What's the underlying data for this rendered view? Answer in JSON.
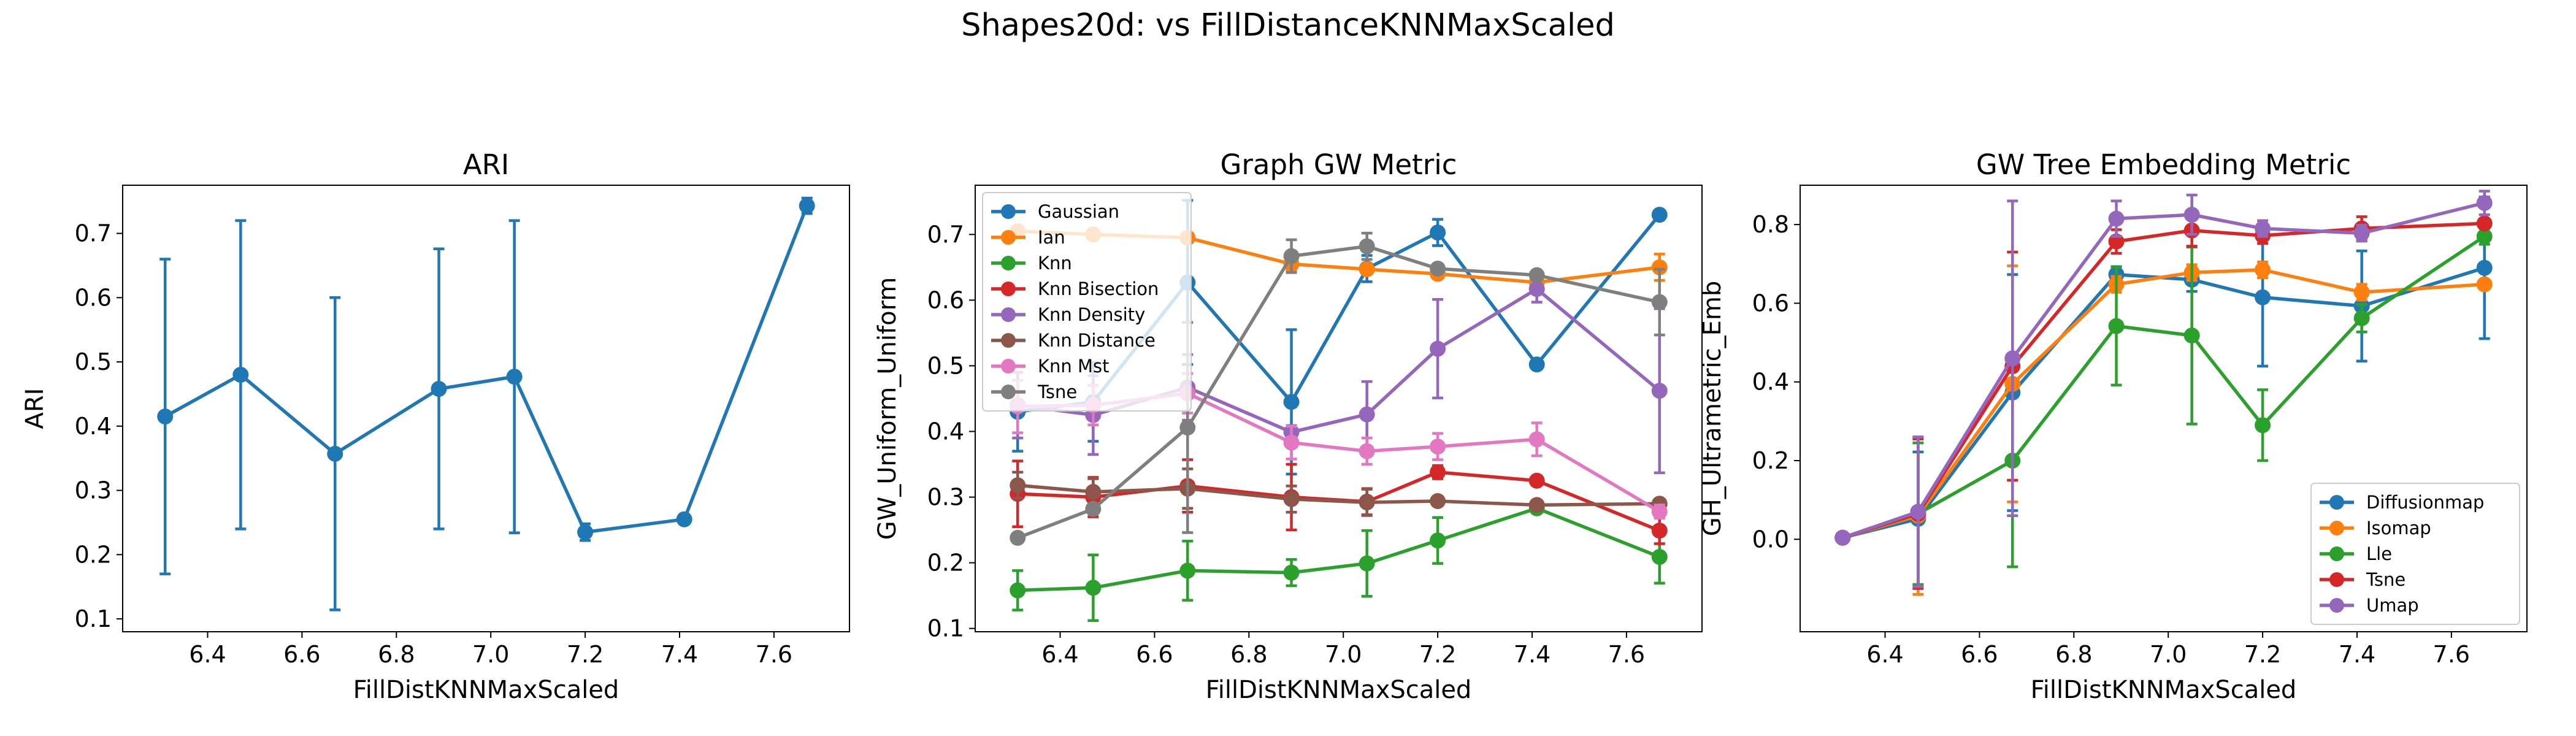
{
  "figure": {
    "title": "Shapes20d: vs FillDistanceKNNMaxScaled"
  },
  "chart_data": [
    {
      "type": "line",
      "title": "ARI",
      "xlabel": "FillDistKNNMaxScaled",
      "ylabel": "ARI",
      "xlim": [
        6.22,
        7.76
      ],
      "ylim": [
        0.08,
        0.775
      ],
      "xticks": [
        6.4,
        6.6,
        6.8,
        7.0,
        7.2,
        7.4,
        7.6
      ],
      "yticks": [
        0.1,
        0.2,
        0.3,
        0.4,
        0.5,
        0.6,
        0.7
      ],
      "x": [
        6.31,
        6.47,
        6.67,
        6.89,
        7.05,
        7.2,
        7.41,
        7.67
      ],
      "legend": null,
      "series": [
        {
          "color": "#1f77b4",
          "values": [
            0.415,
            0.48,
            0.357,
            0.458,
            0.477,
            0.235,
            0.255,
            0.743
          ],
          "err": [
            0.245,
            0.24,
            0.243,
            0.218,
            0.243,
            0.013,
            0,
            0.012
          ]
        }
      ]
    },
    {
      "type": "line",
      "title": "Graph GW Metric",
      "xlabel": "FillDistKNNMaxScaled",
      "ylabel": "GW_Uniform_Uniform",
      "xlim": [
        6.22,
        7.76
      ],
      "ylim": [
        0.095,
        0.775
      ],
      "xticks": [
        6.4,
        6.6,
        6.8,
        7.0,
        7.2,
        7.4,
        7.6
      ],
      "yticks": [
        0.1,
        0.2,
        0.3,
        0.4,
        0.5,
        0.6,
        0.7
      ],
      "x": [
        6.31,
        6.47,
        6.67,
        6.89,
        7.05,
        7.2,
        7.41,
        7.67
      ],
      "legend": "top-left",
      "series": [
        {
          "name": "Gaussian",
          "color": "#1f77b4",
          "values": [
            0.43,
            0.445,
            0.627,
            0.445,
            0.648,
            0.703,
            0.502,
            0.73
          ],
          "err": [
            0.06,
            0.06,
            0.125,
            0.11,
            0.02,
            0.02,
            0,
            0
          ]
        },
        {
          "name": "Ian",
          "color": "#ff7f0e",
          "values": [
            0.705,
            0.7,
            0.695,
            0.655,
            0.647,
            0.64,
            0.627,
            0.65
          ],
          "err": [
            0,
            0,
            0,
            0.01,
            0,
            0,
            0,
            0.02
          ]
        },
        {
          "name": "Knn",
          "color": "#2ca02c",
          "values": [
            0.158,
            0.162,
            0.188,
            0.185,
            0.199,
            0.234,
            0.283,
            0.209
          ],
          "err": [
            0.03,
            0.05,
            0.045,
            0.02,
            0.05,
            0.035,
            0,
            0.04
          ]
        },
        {
          "name": "Knn Bisection",
          "color": "#d62728",
          "values": [
            0.305,
            0.3,
            0.317,
            0.3,
            0.293,
            0.338,
            0.325,
            0.249
          ],
          "err": [
            0.05,
            0.03,
            0.04,
            0.05,
            0.02,
            0.01,
            0,
            0.02
          ]
        },
        {
          "name": "Knn Density",
          "color": "#9467bd",
          "values": [
            0.44,
            0.425,
            0.467,
            0.399,
            0.426,
            0.526,
            0.617,
            0.462
          ],
          "err": [
            0.05,
            0.06,
            0.05,
            0.01,
            0.05,
            0.075,
            0.02,
            0.125
          ]
        },
        {
          "name": "Knn Distance",
          "color": "#8c564b",
          "values": [
            0.318,
            0.308,
            0.313,
            0.297,
            0.292,
            0.294,
            0.288,
            0.29
          ],
          "err": [
            0.02,
            0.02,
            0.03,
            0.02,
            0.02,
            0,
            0,
            0
          ]
        },
        {
          "name": "Knn Mst",
          "color": "#e377c2",
          "values": [
            0.438,
            0.44,
            0.458,
            0.383,
            0.37,
            0.377,
            0.388,
            0.278
          ],
          "err": [
            0.04,
            0.03,
            0.03,
            0.025,
            0.02,
            0.02,
            0.025,
            0.01
          ]
        },
        {
          "name": "Tsne",
          "color": "#7f7f7f",
          "values": [
            0.238,
            0.282,
            0.406,
            0.667,
            0.682,
            0.648,
            0.638,
            0.597
          ],
          "err": [
            0,
            0,
            0.16,
            0.025,
            0.02,
            0,
            0,
            0.05
          ]
        }
      ]
    },
    {
      "type": "line",
      "title": "GW Tree Embedding Metric",
      "xlabel": "FillDistKNNMaxScaled",
      "ylabel": "GH_Ultrametric_Emb",
      "xlim": [
        6.22,
        7.76
      ],
      "ylim": [
        -0.235,
        0.9
      ],
      "xticks": [
        6.4,
        6.6,
        6.8,
        7.0,
        7.2,
        7.4,
        7.6
      ],
      "yticks": [
        0.0,
        0.2,
        0.4,
        0.6,
        0.8
      ],
      "ytickLabels": [
        "0.0",
        "0.2",
        "0.4",
        "0.6",
        "0.8"
      ],
      "x": [
        6.31,
        6.47,
        6.67,
        6.89,
        7.05,
        7.2,
        7.41,
        7.67
      ],
      "legend": "bottom-right",
      "series": [
        {
          "name": "Diffusionmap",
          "color": "#1f77b4",
          "values": [
            0.004,
            0.052,
            0.373,
            0.673,
            0.66,
            0.615,
            0.593,
            0.69
          ],
          "err": [
            0.01,
            0.17,
            0.3,
            0.02,
            0.03,
            0.175,
            0.14,
            0.18
          ]
        },
        {
          "name": "Isomap",
          "color": "#ff7f0e",
          "values": [
            0.004,
            0.06,
            0.395,
            0.648,
            0.678,
            0.685,
            0.628,
            0.648
          ],
          "err": [
            0.01,
            0.2,
            0.3,
            0.02,
            0.02,
            0.02,
            0.02,
            0.01
          ]
        },
        {
          "name": "Lle",
          "color": "#2ca02c",
          "values": [
            0.004,
            0.065,
            0.2,
            0.542,
            0.518,
            0.29,
            0.562,
            0.77
          ],
          "err": [
            0.01,
            0.18,
            0.27,
            0.15,
            0.225,
            0.09,
            0.035,
            0.02
          ]
        },
        {
          "name": "Tsne",
          "color": "#d62728",
          "values": [
            0.004,
            0.065,
            0.44,
            0.757,
            0.785,
            0.772,
            0.79,
            0.803
          ],
          "err": [
            0.01,
            0.19,
            0.29,
            0.03,
            0.04,
            0.02,
            0.03,
            0.01
          ]
        },
        {
          "name": "Umap",
          "color": "#9467bd",
          "values": [
            0.004,
            0.07,
            0.46,
            0.815,
            0.825,
            0.79,
            0.778,
            0.855
          ],
          "err": [
            0.01,
            0.19,
            0.4,
            0.045,
            0.05,
            0.02,
            0.02,
            0.03
          ]
        }
      ]
    }
  ]
}
